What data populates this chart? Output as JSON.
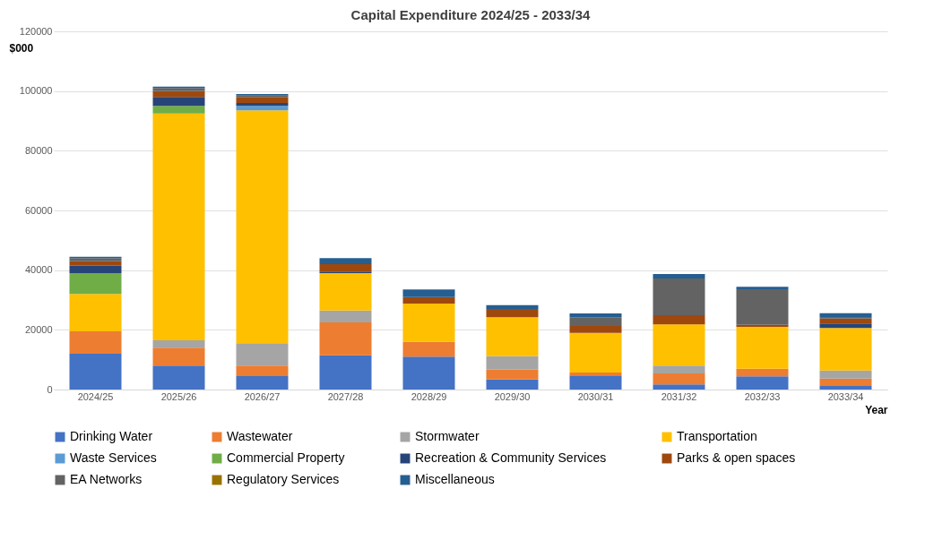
{
  "chart_data": {
    "type": "bar",
    "stacked": true,
    "title": "Capital Expenditure 2024/25 - 2033/34",
    "xlabel": "Year",
    "ylabel": "$000",
    "categories": [
      "2024/25",
      "2025/26",
      "2026/27",
      "2027/28",
      "2028/29",
      "2029/30",
      "2030/31",
      "2031/32",
      "2032/33",
      "2033/34"
    ],
    "ylim": [
      0,
      120000
    ],
    "yticks": [
      0,
      20000,
      40000,
      60000,
      80000,
      100000,
      120000
    ],
    "grid": "y",
    "legend": "bottom",
    "series": [
      {
        "name": "Drinking Water",
        "color": "#4472c4",
        "values": [
          12000,
          8000,
          4500,
          11500,
          11000,
          3400,
          4700,
          1700,
          4400,
          1200
        ]
      },
      {
        "name": "Wastewater",
        "color": "#ed7d31",
        "values": [
          7500,
          6000,
          3500,
          11000,
          5000,
          3300,
          1000,
          3700,
          2600,
          2500
        ]
      },
      {
        "name": "Stormwater",
        "color": "#a5a5a5",
        "values": [
          0,
          2500,
          7500,
          4000,
          0,
          4500,
          0,
          2600,
          0,
          2700
        ]
      },
      {
        "name": "Transportation",
        "color": "#ffc000",
        "values": [
          12500,
          76000,
          78000,
          12500,
          12800,
          13000,
          13300,
          13800,
          14000,
          14200
        ]
      },
      {
        "name": "Waste Services",
        "color": "#5b9bd5",
        "values": [
          0,
          0,
          1500,
          0,
          0,
          0,
          0,
          0,
          0,
          0
        ]
      },
      {
        "name": "Commercial Property",
        "color": "#70ad47",
        "values": [
          7000,
          2500,
          0,
          0,
          0,
          0,
          0,
          0,
          0,
          0
        ]
      },
      {
        "name": "Recreation & Community Services",
        "color": "#264478",
        "values": [
          2500,
          3000,
          1000,
          500,
          0,
          0,
          0,
          0,
          0,
          1500
        ]
      },
      {
        "name": "Parks & open spaces",
        "color": "#9e480e",
        "values": [
          1500,
          2000,
          2000,
          2500,
          2200,
          2800,
          2300,
          3100,
          700,
          1700
        ]
      },
      {
        "name": "EA Networks",
        "color": "#636363",
        "values": [
          1000,
          1000,
          500,
          0,
          0,
          0,
          2900,
          12300,
          11900,
          500
        ]
      },
      {
        "name": "Regulatory Services",
        "color": "#997300",
        "values": [
          0,
          0,
          0,
          0,
          0,
          0,
          0,
          0,
          0,
          0
        ]
      },
      {
        "name": "Miscellaneous",
        "color": "#255e91",
        "values": [
          500,
          500,
          500,
          2000,
          2500,
          1300,
          1300,
          1500,
          800,
          1300
        ]
      }
    ]
  }
}
